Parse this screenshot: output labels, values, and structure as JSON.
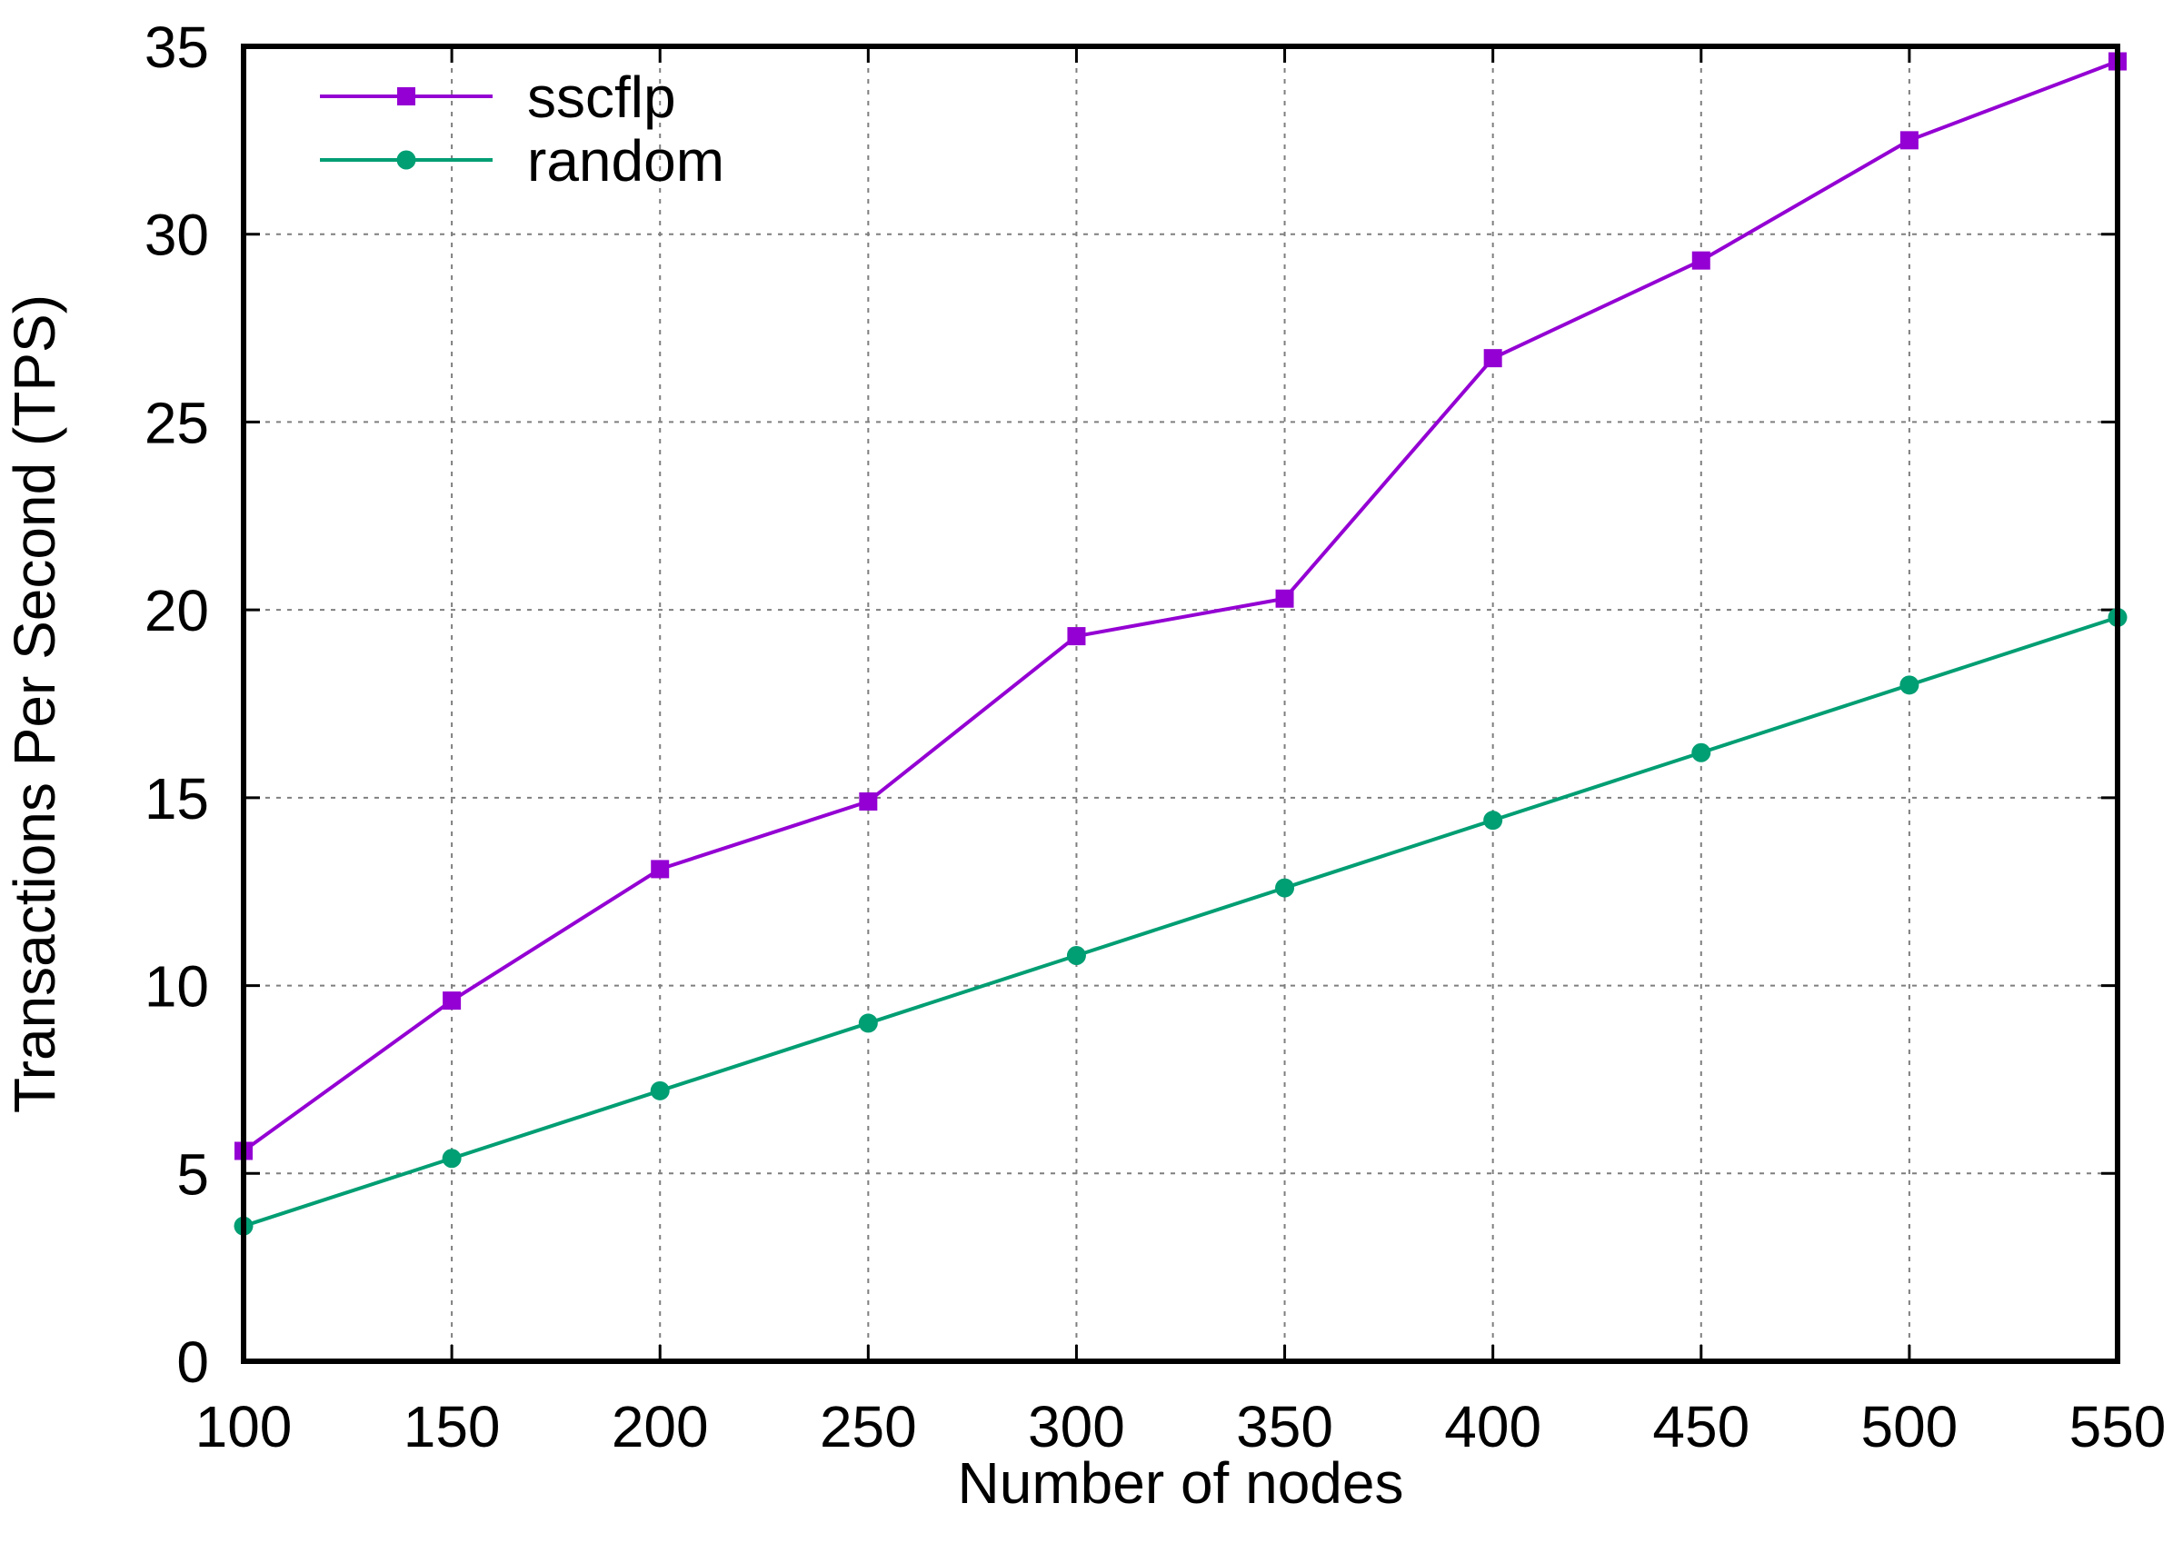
{
  "chart_data": {
    "type": "line",
    "xlabel": "Number of nodes",
    "ylabel": "Transactions Per Second (TPS)",
    "xlim": [
      100,
      550
    ],
    "ylim": [
      0,
      35
    ],
    "x_ticks": [
      100,
      150,
      200,
      250,
      300,
      350,
      400,
      450,
      500,
      550
    ],
    "y_ticks": [
      0,
      5,
      10,
      15,
      20,
      25,
      30,
      35
    ],
    "grid": true,
    "legend_position": "top-left",
    "x": [
      100,
      150,
      200,
      250,
      300,
      350,
      400,
      450,
      500,
      550
    ],
    "series": [
      {
        "name": "sscflp",
        "color": "#9400d3",
        "marker": "square",
        "values": [
          5.6,
          9.6,
          13.1,
          14.9,
          19.3,
          20.3,
          26.7,
          29.3,
          32.5,
          34.6
        ]
      },
      {
        "name": "random",
        "color": "#009e73",
        "marker": "circle",
        "values": [
          3.6,
          5.4,
          7.2,
          9.0,
          10.8,
          12.6,
          14.4,
          16.2,
          18.0,
          19.8
        ]
      }
    ]
  }
}
